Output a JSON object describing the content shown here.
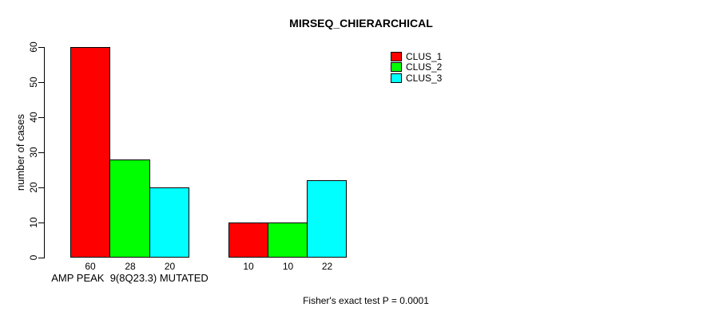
{
  "chart_data": {
    "type": "bar",
    "title": "MIRSEQ_CHIERARCHICAL",
    "ylabel": "number of cases",
    "xlabel": "",
    "ylim": [
      0,
      60
    ],
    "yticks": [
      0,
      10,
      20,
      30,
      40,
      50,
      60
    ],
    "grid": false,
    "legend_position": "top-right",
    "bar_value_labels_shown": true,
    "categories": [
      "AMP PEAK  9(8Q23.3) MUTATED",
      ""
    ],
    "series": [
      {
        "name": "CLUS_1",
        "color": "#FF0000",
        "values": [
          60,
          10
        ]
      },
      {
        "name": "CLUS_2",
        "color": "#00FF00",
        "values": [
          28,
          10
        ]
      },
      {
        "name": "CLUS_3",
        "color": "#00FFFF",
        "values": [
          20,
          22
        ]
      }
    ],
    "annotation": "Fisher's exact test P = 0.0001"
  },
  "colors": {
    "background": "#FFFFFF",
    "axis": "#000000",
    "bar_border": "#000000",
    "clus_1": "#FF0000",
    "clus_2": "#00FF00",
    "clus_3": "#00FFFF"
  }
}
